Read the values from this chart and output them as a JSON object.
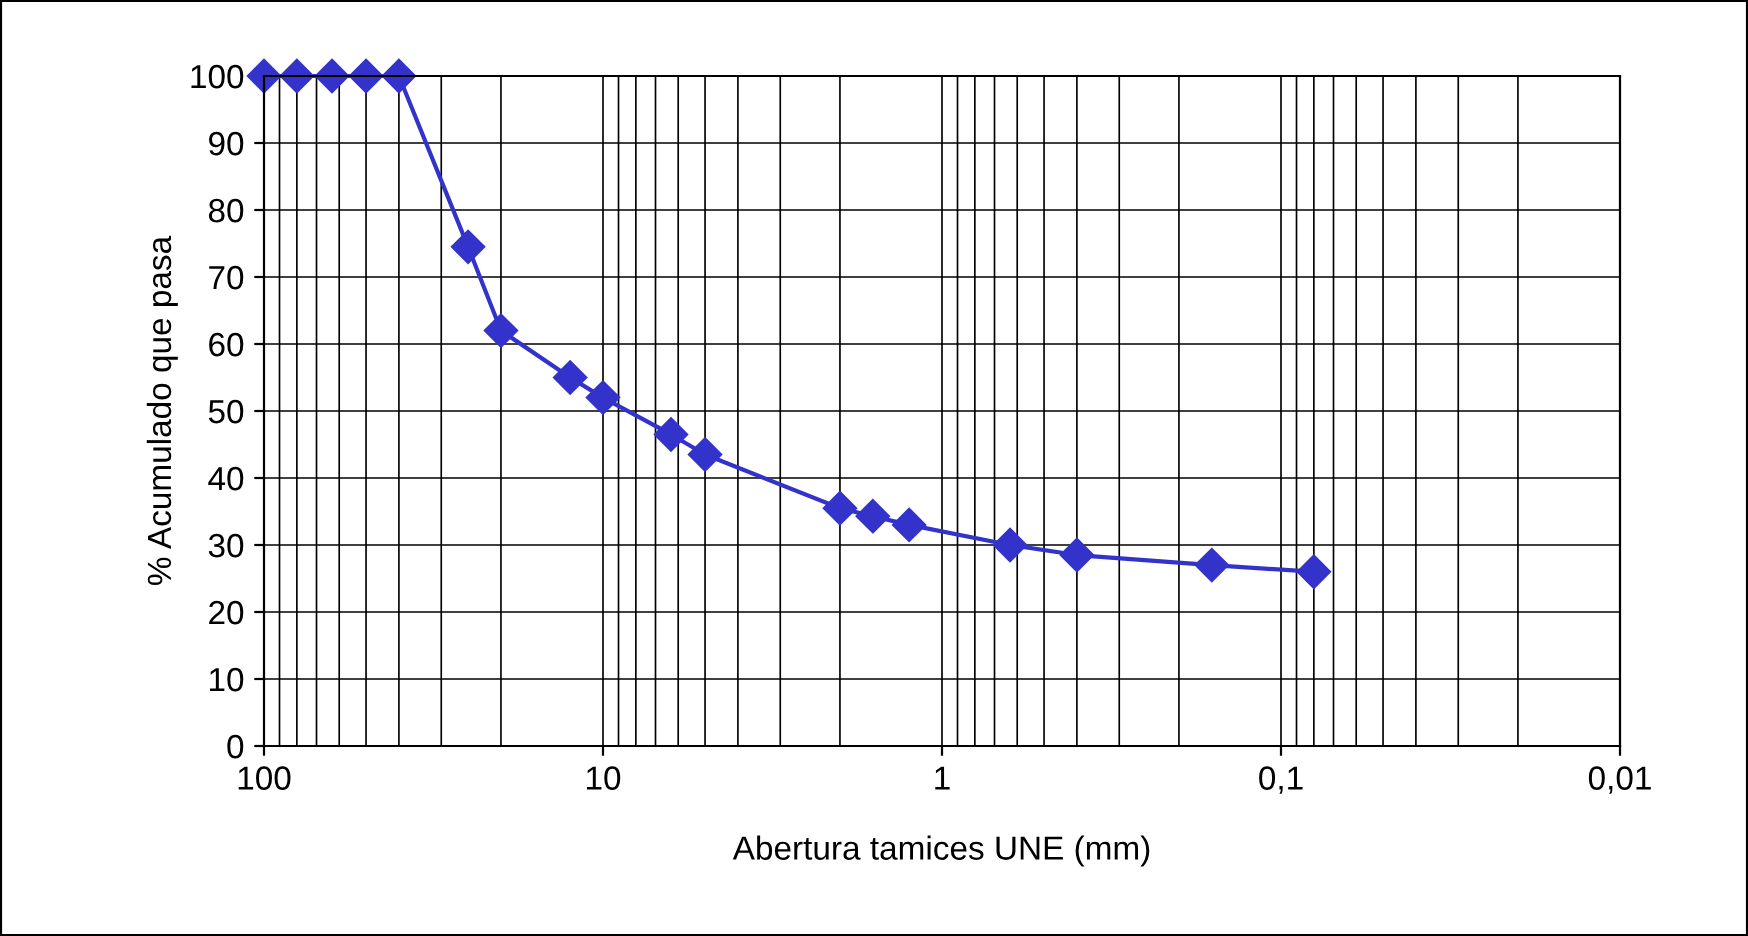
{
  "chart_data": {
    "type": "line",
    "xlabel": "Abertura tamices UNE (mm)",
    "ylabel": "% Acumulado que pasa",
    "x": [
      100,
      80,
      63,
      50,
      40,
      25,
      20,
      12.5,
      10,
      6.3,
      5,
      2,
      1.6,
      1.25,
      0.63,
      0.4,
      0.16,
      0.08
    ],
    "series": [
      {
        "color": "#3333cc",
        "values": [
          100,
          100,
          100,
          100,
          100,
          74.5,
          62,
          55,
          52,
          46.5,
          43.5,
          35.5,
          34.3,
          33,
          30,
          28.5,
          27,
          26
        ]
      }
    ],
    "log": "x",
    "xlim": [
      100,
      0.01
    ],
    "xticks": [
      100,
      10,
      1,
      {
        "value": 0.1,
        "label": "0,1"
      },
      {
        "value": 0.01,
        "label": "0,01"
      }
    ],
    "ylim": [
      0,
      100
    ],
    "yticks": [
      0,
      10,
      20,
      30,
      40,
      50,
      60,
      70,
      80,
      90,
      100
    ],
    "grid": true,
    "marker": "diamond",
    "line_style": "solid"
  }
}
